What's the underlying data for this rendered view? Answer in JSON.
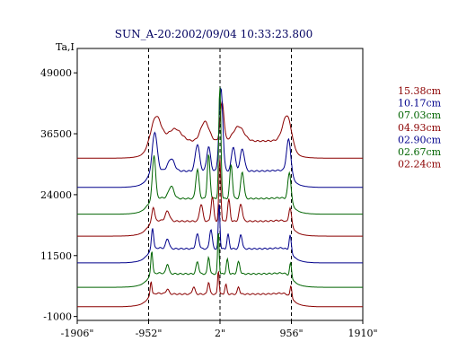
{
  "chart_data": {
    "type": "line",
    "title": "SUN_A-20:2002/09/04 10:33:23.800",
    "ylabel": "Ta,I",
    "xlabel": "",
    "x_tick_labels": [
      "-1906\"",
      "-952\"",
      "2\"",
      "956\"",
      "1910\""
    ],
    "y_tick_labels": [
      "-1000",
      "11500",
      "24000",
      "36500",
      "49000"
    ],
    "x_ticks": [
      -1906,
      -952,
      2,
      956,
      1910
    ],
    "y_ticks": [
      -1000,
      11500,
      24000,
      36500,
      49000
    ],
    "xlim": [
      -1906,
      1910
    ],
    "ylim": [
      -1800,
      54000
    ],
    "dashed_vlines": [
      -952,
      2,
      956
    ],
    "grid": false,
    "legend_position": "right",
    "series": [
      {
        "name": "15.38cm",
        "color": "#8b0000",
        "baseline": 31500,
        "peaks": [
          {
            "x": -850,
            "h": 5000,
            "w": 90
          },
          {
            "x": -600,
            "h": 2500,
            "w": 120
          },
          {
            "x": -200,
            "h": 4000,
            "w": 80
          },
          {
            "x": 30,
            "h": 8000,
            "w": 35
          },
          {
            "x": 250,
            "h": 3000,
            "w": 100
          },
          {
            "x": 900,
            "h": 5500,
            "w": 80
          }
        ]
      },
      {
        "name": "10.17cm",
        "color": "#00008b",
        "baseline": 25500,
        "peaks": [
          {
            "x": -870,
            "h": 8000,
            "w": 45
          },
          {
            "x": -650,
            "h": 2500,
            "w": 60
          },
          {
            "x": -300,
            "h": 5500,
            "w": 40
          },
          {
            "x": -150,
            "h": 5000,
            "w": 35
          },
          {
            "x": 15,
            "h": 17000,
            "w": 35
          },
          {
            "x": 180,
            "h": 5000,
            "w": 35
          },
          {
            "x": 300,
            "h": 4500,
            "w": 40
          },
          {
            "x": 920,
            "h": 7000,
            "w": 40
          }
        ]
      },
      {
        "name": "07.03cm",
        "color": "#006400",
        "baseline": 20000,
        "peaks": [
          {
            "x": -880,
            "h": 9000,
            "w": 30
          },
          {
            "x": -650,
            "h": 2500,
            "w": 50
          },
          {
            "x": -300,
            "h": 6000,
            "w": 30
          },
          {
            "x": -150,
            "h": 9000,
            "w": 25
          },
          {
            "x": 0,
            "h": 23000,
            "w": 20
          },
          {
            "x": 150,
            "h": 7000,
            "w": 25
          },
          {
            "x": 300,
            "h": 5500,
            "w": 30
          },
          {
            "x": 930,
            "h": 6000,
            "w": 30
          }
        ]
      },
      {
        "name": "04.93cm",
        "color": "#8b0000",
        "baseline": 15500,
        "peaks": [
          {
            "x": -890,
            "h": 3000,
            "w": 25
          },
          {
            "x": -700,
            "h": 2000,
            "w": 40
          },
          {
            "x": -250,
            "h": 3500,
            "w": 30
          },
          {
            "x": -100,
            "h": 5000,
            "w": 25
          },
          {
            "x": 0,
            "h": 13000,
            "w": 18
          },
          {
            "x": 120,
            "h": 4500,
            "w": 22
          },
          {
            "x": 280,
            "h": 3500,
            "w": 30
          },
          {
            "x": 940,
            "h": 3500,
            "w": 25
          }
        ]
      },
      {
        "name": "02.90cm",
        "color": "#00008b",
        "baseline": 10000,
        "peaks": [
          {
            "x": -900,
            "h": 4500,
            "w": 20
          },
          {
            "x": -700,
            "h": 2000,
            "w": 30
          },
          {
            "x": -300,
            "h": 3000,
            "w": 30
          },
          {
            "x": -120,
            "h": 4000,
            "w": 25
          },
          {
            "x": -10,
            "h": 9500,
            "w": 15
          },
          {
            "x": 110,
            "h": 3000,
            "w": 20
          },
          {
            "x": 280,
            "h": 3000,
            "w": 25
          },
          {
            "x": 940,
            "h": 3500,
            "w": 20
          }
        ]
      },
      {
        "name": "02.67cm",
        "color": "#006400",
        "baseline": 5000,
        "peaks": [
          {
            "x": -910,
            "h": 5000,
            "w": 18
          },
          {
            "x": -700,
            "h": 2000,
            "w": 25
          },
          {
            "x": -300,
            "h": 2500,
            "w": 25
          },
          {
            "x": -150,
            "h": 3500,
            "w": 20
          },
          {
            "x": -20,
            "h": 9000,
            "w": 14
          },
          {
            "x": 100,
            "h": 3000,
            "w": 20
          },
          {
            "x": 250,
            "h": 2500,
            "w": 25
          },
          {
            "x": 945,
            "h": 3000,
            "w": 18
          }
        ]
      },
      {
        "name": "02.24cm",
        "color": "#8b0000",
        "baseline": 1000,
        "peaks": [
          {
            "x": -920,
            "h": 3000,
            "w": 16
          },
          {
            "x": -700,
            "h": 1000,
            "w": 25
          },
          {
            "x": -350,
            "h": 1500,
            "w": 25
          },
          {
            "x": -150,
            "h": 2500,
            "w": 20
          },
          {
            "x": -20,
            "h": 5000,
            "w": 14
          },
          {
            "x": 80,
            "h": 2000,
            "w": 18
          },
          {
            "x": 250,
            "h": 1500,
            "w": 20
          },
          {
            "x": 950,
            "h": 2500,
            "w": 16
          }
        ]
      }
    ]
  }
}
